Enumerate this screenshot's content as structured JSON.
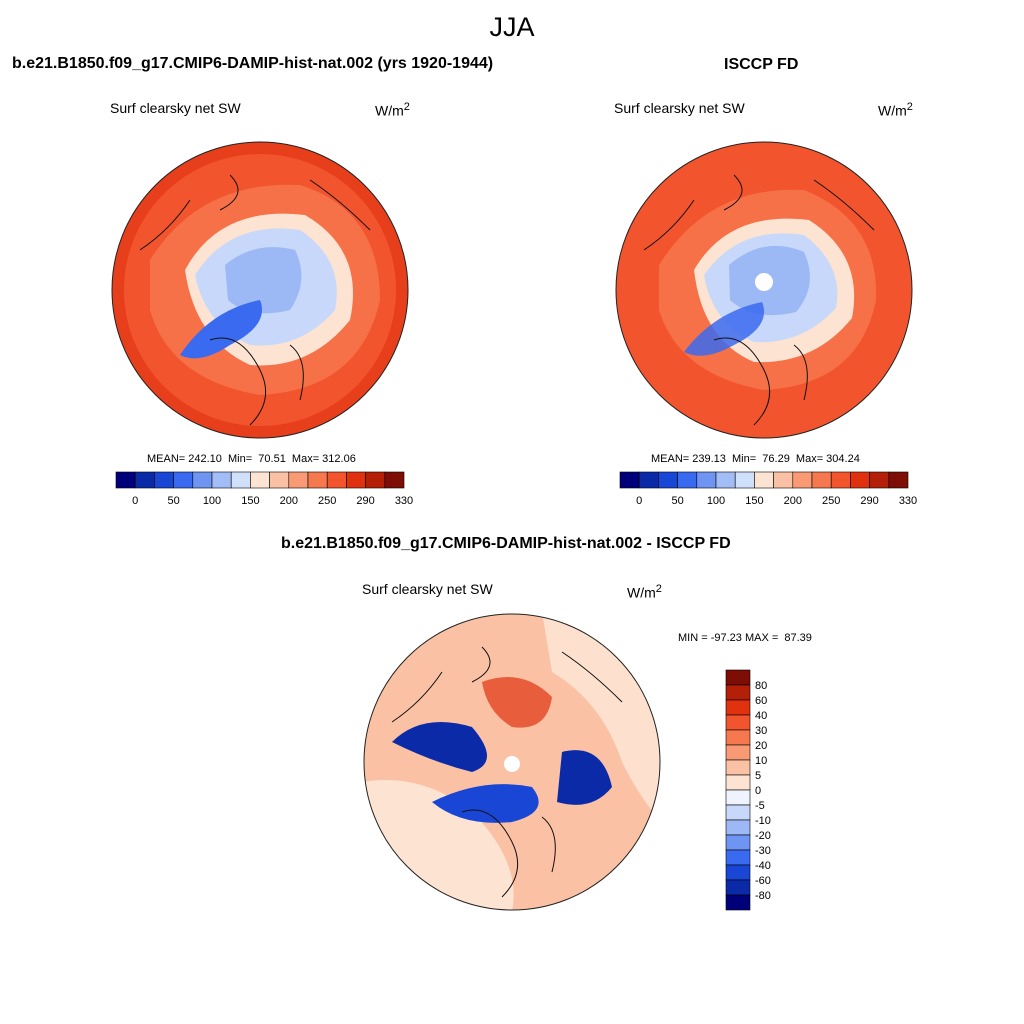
{
  "figure": {
    "season": "JJA",
    "units_main": "W/m",
    "units_sup": "2"
  },
  "panels": [
    {
      "title": "b.e21.B1850.f09_g17.CMIP6-DAMIP-hist-nat.002 (yrs 1920-1944)",
      "variable": "Surf clearsky net SW",
      "stats": "MEAN= 242.10  Min=  70.51  Max= 312.06"
    },
    {
      "title": "ISCCP FD",
      "variable": "Surf clearsky net SW",
      "stats": "MEAN= 239.13  Min=  76.29  Max= 304.24"
    },
    {
      "title": "b.e21.B1850.f09_g17.CMIP6-DAMIP-hist-nat.002 - ISCCP FD",
      "variable": "Surf clearsky net SW",
      "stats": "MIN = -97.23 MAX =  87.39"
    }
  ],
  "colorbar_abs": {
    "tick_labels": [
      "0",
      "50",
      "100",
      "150",
      "200",
      "250",
      "290",
      "330"
    ],
    "colors": [
      "#00007a",
      "#0a2aa8",
      "#1a46d6",
      "#3a6af0",
      "#6f95f2",
      "#a2bdf5",
      "#d1e0fa",
      "#fde3d2",
      "#fbc1a4",
      "#f89a74",
      "#f6784e",
      "#f2542d",
      "#e0320f",
      "#b41f08",
      "#7e0d06"
    ]
  },
  "colorbar_diff": {
    "tick_labels": [
      "80",
      "60",
      "40",
      "30",
      "20",
      "10",
      "5",
      "0",
      "-5",
      "-10",
      "-20",
      "-30",
      "-40",
      "-60",
      "-80"
    ],
    "colors": [
      "#7e0d06",
      "#b41f08",
      "#e0320f",
      "#f2542d",
      "#f6784e",
      "#f89a74",
      "#fbc1a4",
      "#fde3d2",
      "#eef3fd",
      "#c7d8fa",
      "#9cb8f5",
      "#6f95f2",
      "#3a6af0",
      "#1a46d6",
      "#0a2aa8",
      "#00007a"
    ]
  },
  "map_colors": {
    "ocean_warm": "#f2542d",
    "deep_warm": "#e0320f",
    "mid_warm": "#f6784e",
    "light_warm": "#f89a74",
    "pale": "#fde3d2",
    "ice_light": "#c7d8fa",
    "ice_mid": "#9cb8f5",
    "ice_dark": "#3a6af0",
    "ice_deep": "#1a46d6",
    "diff_bg": "#fbc1a4",
    "diff_pale": "#fde3d2",
    "diff_deepblue": "#0a2aa8",
    "diff_blue": "#1a46d6"
  }
}
